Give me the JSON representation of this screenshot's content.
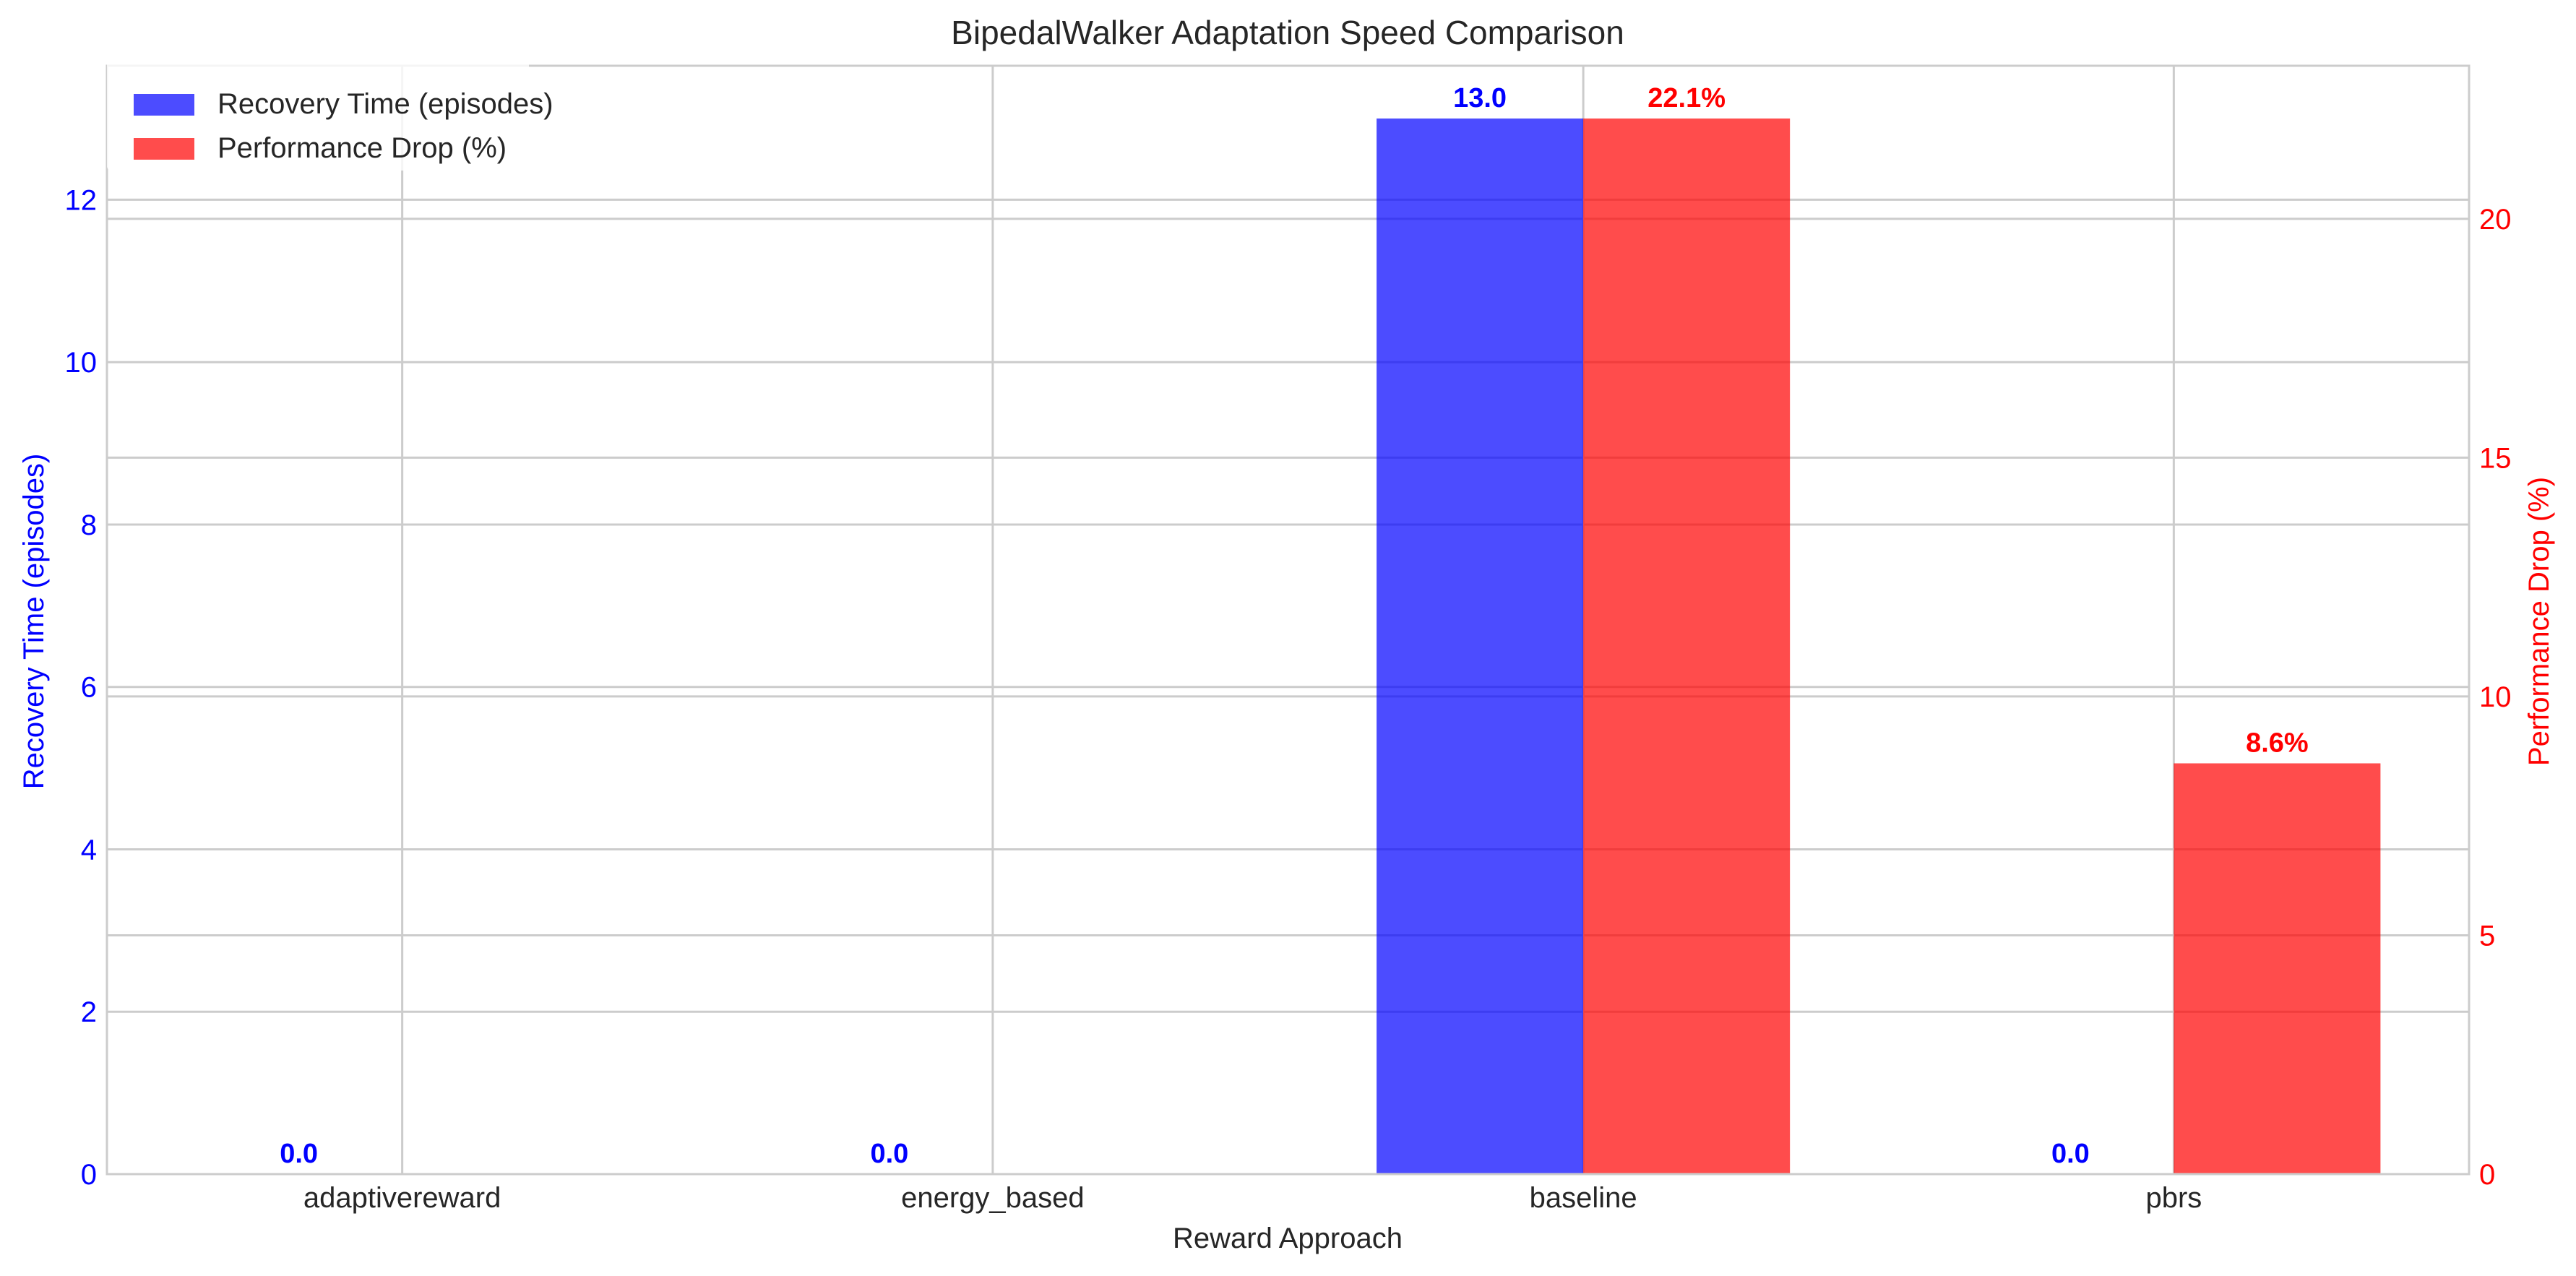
{
  "chart_data": {
    "type": "bar",
    "title": "BipedalWalker Adaptation Speed Comparison",
    "xlabel": "Reward Approach",
    "categories": [
      "adaptivereward",
      "energy_based",
      "baseline",
      "pbrs"
    ],
    "series": [
      {
        "name": "Recovery Time (episodes)",
        "axis": "left",
        "color": "#0000ff",
        "values": [
          0.0,
          0.0,
          13.0,
          0.0
        ],
        "labels": [
          "0.0",
          "0.0",
          "13.0",
          "0.0"
        ]
      },
      {
        "name": "Performance Drop (%)",
        "axis": "right",
        "color": "#ff0000",
        "values": [
          0.0,
          0.0,
          22.1,
          8.6
        ],
        "labels": [
          "",
          "",
          "22.1%",
          "8.6%"
        ]
      }
    ],
    "y_left": {
      "label": "Recovery Time (episodes)",
      "color": "#0000ff",
      "lim": [
        0,
        13.65
      ],
      "ticks": [
        0,
        2,
        4,
        6,
        8,
        10,
        12
      ]
    },
    "y_right": {
      "label": "Performance Drop (%)",
      "color": "#ff0000",
      "lim": [
        0,
        23.205
      ],
      "ticks": [
        0,
        5,
        10,
        15,
        20
      ]
    },
    "grid": true,
    "legend": "top-left"
  }
}
